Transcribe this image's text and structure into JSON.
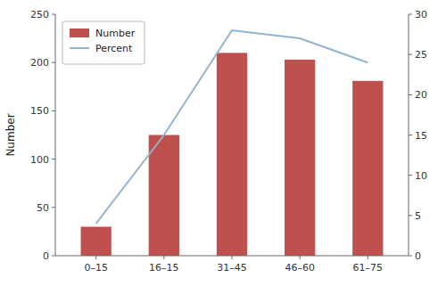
{
  "chart_data": {
    "type": "bar",
    "categories": [
      "0–15",
      "16–15",
      "31–45",
      "46–60",
      "61–75"
    ],
    "series": [
      {
        "name": "Number",
        "type": "bar",
        "color": "#c0504d",
        "values": [
          30,
          125,
          210,
          203,
          181
        ]
      },
      {
        "name": "Percent",
        "type": "line",
        "axis": "y2",
        "color": "#92b4d0",
        "values": [
          4.0,
          15.0,
          28.0,
          27.0,
          24.0
        ]
      }
    ],
    "ylabel": "Number",
    "ylim": [
      0,
      250
    ],
    "yticks": [
      0,
      50,
      100,
      150,
      200,
      250
    ],
    "y2lim": [
      0,
      30
    ],
    "y2ticks": [
      0,
      5,
      10,
      15,
      20,
      25,
      30
    ],
    "legend": "upper left",
    "grid": false
  }
}
